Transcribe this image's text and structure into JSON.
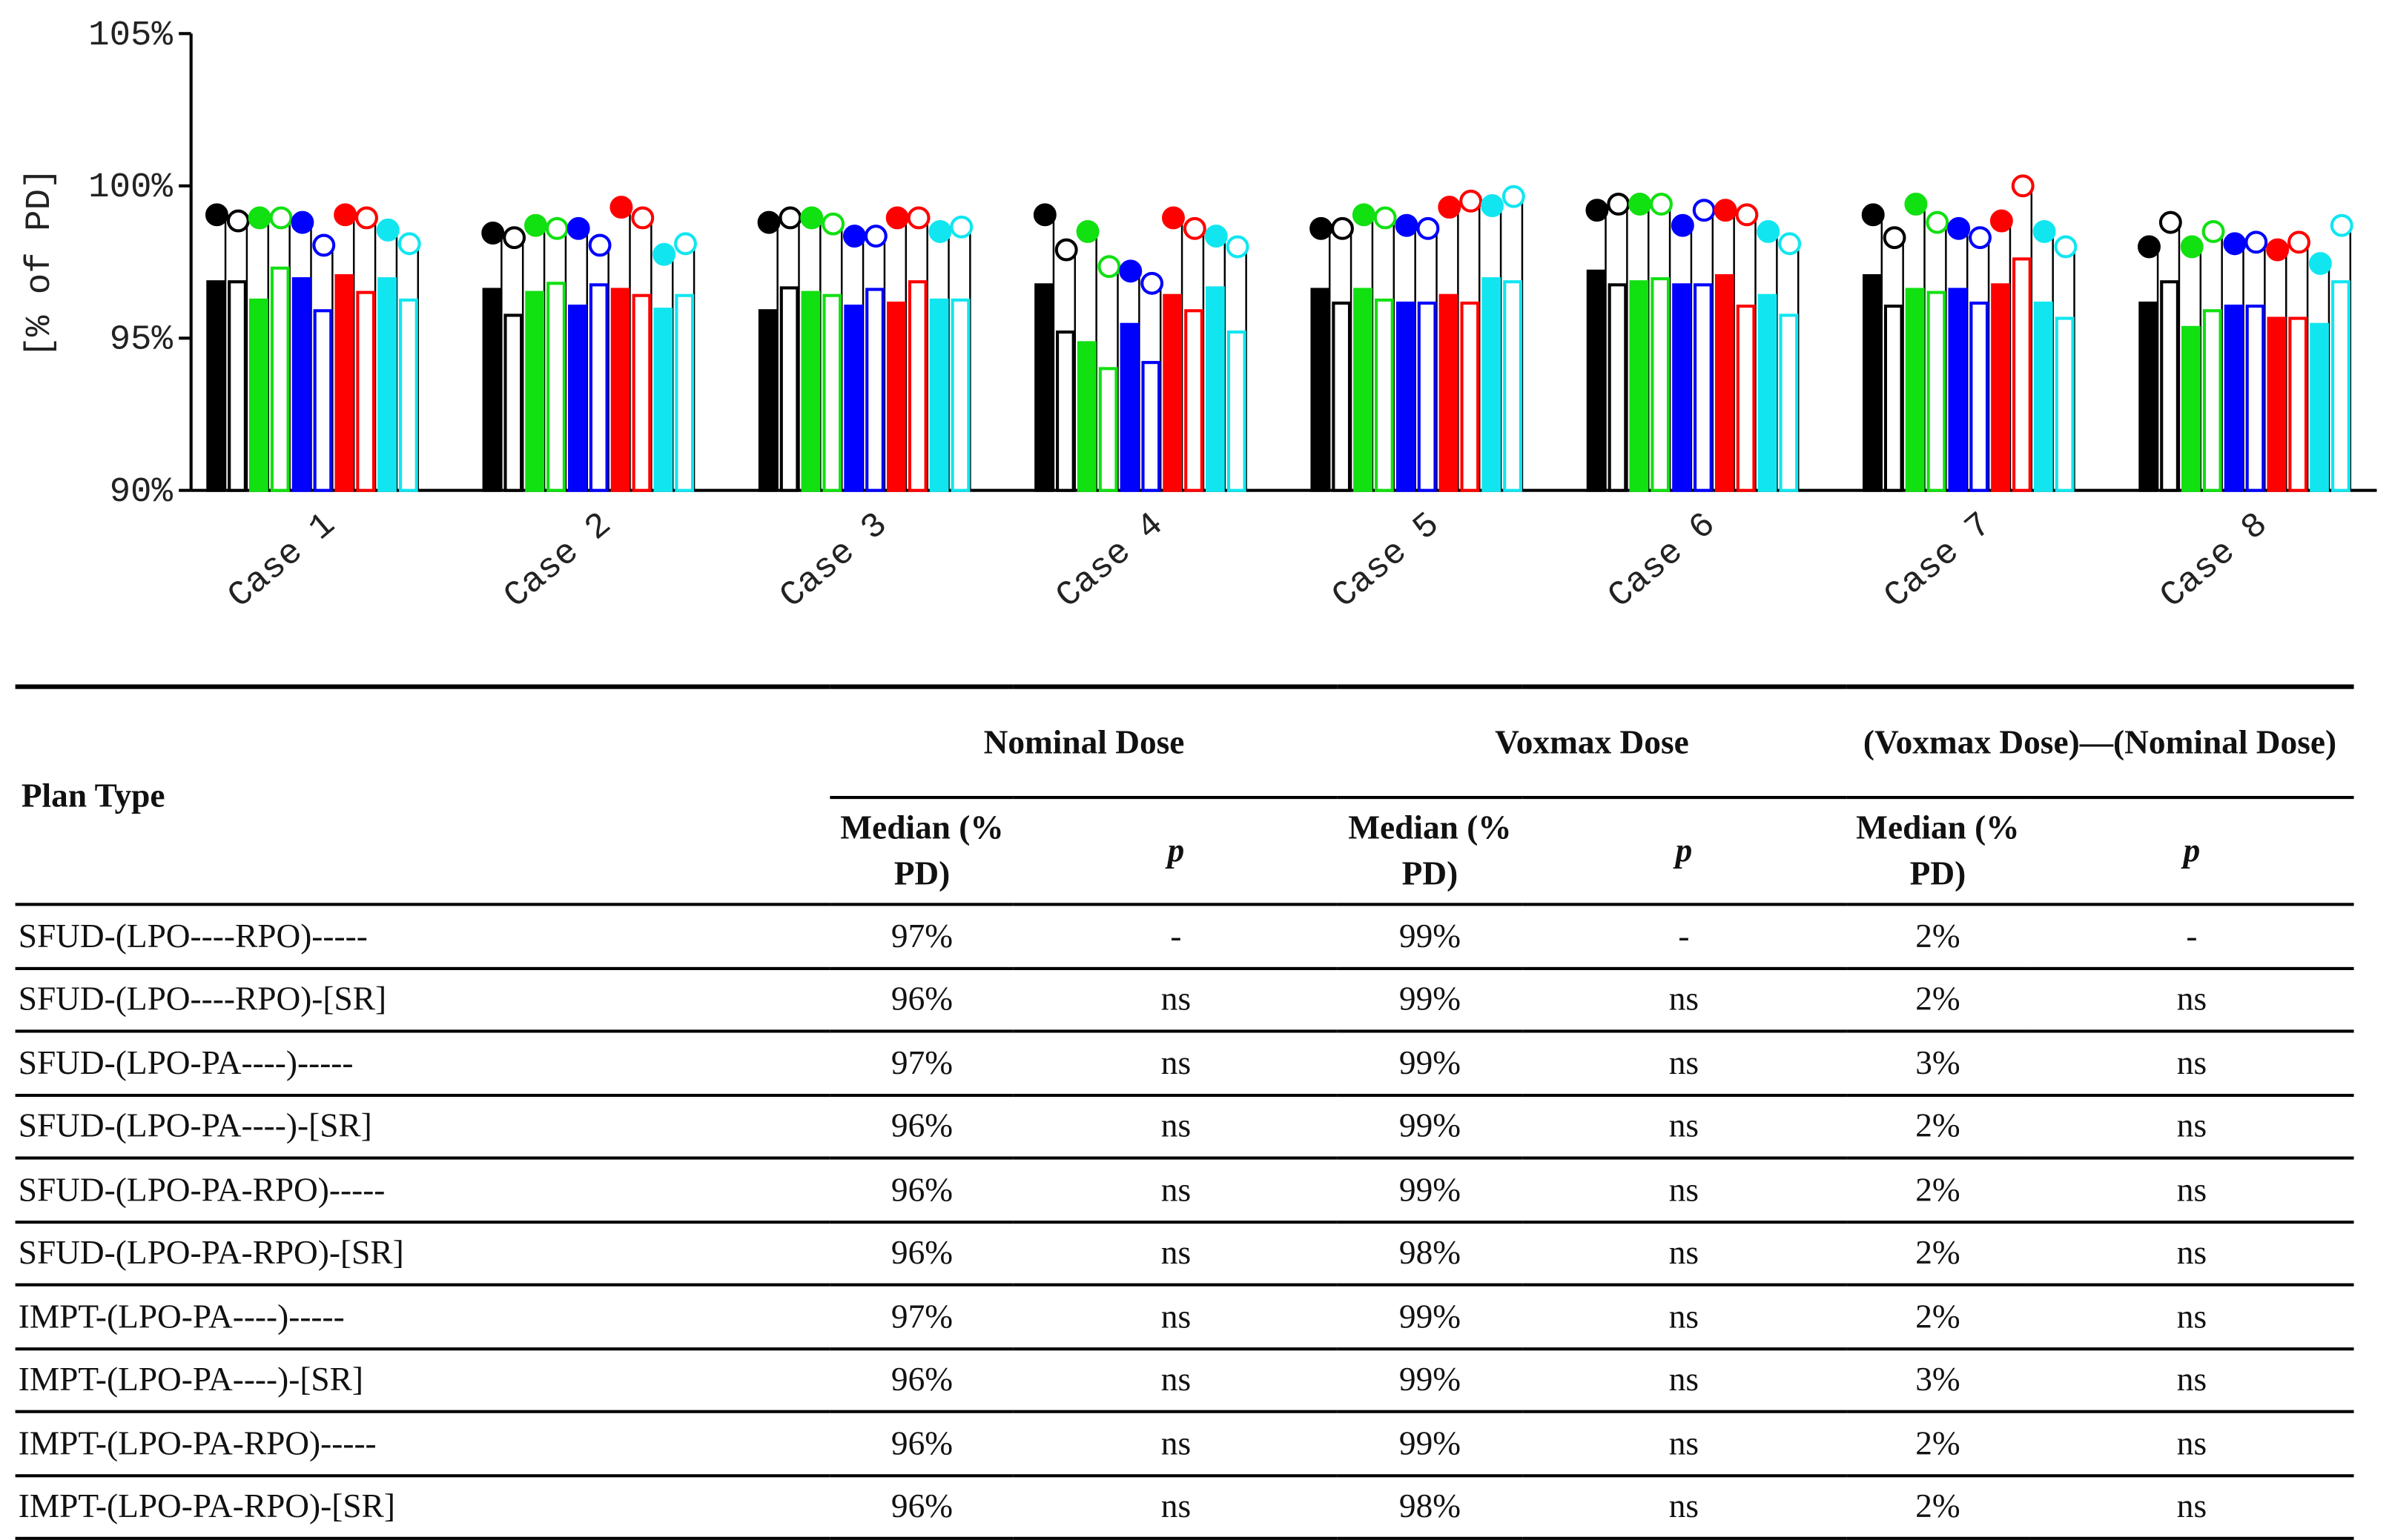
{
  "chart_data": {
    "type": "bar",
    "ylabel": "[% of PD]",
    "categories": [
      "Case 1",
      "Case 2",
      "Case 3",
      "Case 4",
      "Case 5",
      "Case 6",
      "Case 7",
      "Case 8"
    ],
    "ylim": [
      90,
      105
    ],
    "yticks": [
      {
        "value": 90,
        "label": "90%"
      },
      {
        "value": 95,
        "label": "95%"
      },
      {
        "value": 100,
        "label": "100%"
      },
      {
        "value": 105,
        "label": "105%"
      }
    ],
    "series": [
      {
        "color": "#000000",
        "filled": true,
        "values": [
          96.85,
          96.6,
          95.9,
          96.75,
          96.6,
          97.2,
          97.05,
          96.15
        ],
        "marker_values": [
          99.05,
          98.45,
          98.8,
          99.05,
          98.6,
          99.2,
          99.05,
          98.0
        ]
      },
      {
        "color": "#000000",
        "filled": false,
        "values": [
          96.85,
          95.75,
          96.65,
          95.2,
          96.15,
          96.75,
          96.05,
          96.85
        ],
        "marker_values": [
          98.85,
          98.3,
          98.95,
          97.9,
          98.6,
          99.4,
          98.3,
          98.8
        ]
      },
      {
        "color": "#11e011",
        "filled": true,
        "values": [
          96.25,
          96.5,
          96.5,
          94.85,
          96.6,
          96.85,
          96.6,
          95.35
        ],
        "marker_values": [
          98.95,
          98.7,
          98.95,
          98.5,
          99.05,
          99.4,
          99.4,
          98.0
        ]
      },
      {
        "color": "#11e011",
        "filled": false,
        "values": [
          97.3,
          96.8,
          96.4,
          94.0,
          96.25,
          96.95,
          96.5,
          95.9
        ],
        "marker_values": [
          98.95,
          98.6,
          98.75,
          97.35,
          98.95,
          99.4,
          98.8,
          98.5
        ]
      },
      {
        "color": "#0000ff",
        "filled": true,
        "values": [
          96.95,
          96.05,
          96.05,
          95.45,
          96.15,
          96.75,
          96.6,
          96.05
        ],
        "marker_values": [
          98.8,
          98.6,
          98.35,
          97.2,
          98.7,
          98.7,
          98.6,
          98.1
        ]
      },
      {
        "color": "#0000ff",
        "filled": false,
        "values": [
          95.9,
          96.75,
          96.6,
          94.2,
          96.15,
          96.75,
          96.15,
          96.05
        ],
        "marker_values": [
          98.05,
          98.05,
          98.35,
          96.8,
          98.6,
          99.2,
          98.3,
          98.15
        ]
      },
      {
        "color": "#ff0000",
        "filled": true,
        "values": [
          97.05,
          96.6,
          96.15,
          96.4,
          96.4,
          97.05,
          96.75,
          95.65
        ],
        "marker_values": [
          99.05,
          99.3,
          98.95,
          98.95,
          99.3,
          99.2,
          98.85,
          97.9
        ]
      },
      {
        "color": "#ff0000",
        "filled": false,
        "values": [
          96.5,
          96.4,
          96.85,
          95.9,
          96.15,
          96.05,
          97.6,
          95.65
        ],
        "marker_values": [
          98.95,
          98.95,
          98.95,
          98.6,
          99.5,
          99.05,
          100.0,
          98.15
        ]
      },
      {
        "color": "#11e6f0",
        "filled": true,
        "values": [
          96.95,
          95.95,
          96.25,
          96.65,
          96.95,
          96.4,
          96.15,
          95.45
        ],
        "marker_values": [
          98.55,
          97.75,
          98.5,
          98.35,
          99.35,
          98.5,
          98.5,
          97.45
        ]
      },
      {
        "color": "#11e6f0",
        "filled": false,
        "values": [
          96.25,
          96.4,
          96.25,
          95.2,
          96.85,
          95.75,
          95.65,
          96.85
        ],
        "marker_values": [
          98.1,
          98.1,
          98.65,
          98.0,
          99.65,
          98.1,
          98.0,
          98.7
        ]
      }
    ]
  },
  "table": {
    "header": [
      "Plan Type",
      "Nominal Dose",
      "Voxmax Dose",
      "(Voxmax Dose)—(Nominal Dose)"
    ],
    "subheader": [
      "Median (% PD)",
      "p",
      "Median (% PD)",
      "p",
      "Median (% PD)",
      "p"
    ],
    "rows": [
      [
        "SFUD-(LPO----RPO)-----",
        "97%",
        "-",
        "99%",
        "-",
        "2%",
        "-"
      ],
      [
        "SFUD-(LPO----RPO)-[SR]",
        "96%",
        "ns",
        "99%",
        "ns",
        "2%",
        "ns"
      ],
      [
        "SFUD-(LPO-PA----)-----",
        "97%",
        "ns",
        "99%",
        "ns",
        "3%",
        "ns"
      ],
      [
        "SFUD-(LPO-PA----)-[SR]",
        "96%",
        "ns",
        "99%",
        "ns",
        "2%",
        "ns"
      ],
      [
        "SFUD-(LPO-PA-RPO)-----",
        "96%",
        "ns",
        "99%",
        "ns",
        "2%",
        "ns"
      ],
      [
        "SFUD-(LPO-PA-RPO)-[SR]",
        "96%",
        "ns",
        "98%",
        "ns",
        "2%",
        "ns"
      ],
      [
        "IMPT-(LPO-PA----)-----",
        "97%",
        "ns",
        "99%",
        "ns",
        "2%",
        "ns"
      ],
      [
        "IMPT-(LPO-PA----)-[SR]",
        "96%",
        "ns",
        "99%",
        "ns",
        "3%",
        "ns"
      ],
      [
        "IMPT-(LPO-PA-RPO)-----",
        "96%",
        "ns",
        "99%",
        "ns",
        "2%",
        "ns"
      ],
      [
        "IMPT-(LPO-PA-RPO)-[SR]",
        "96%",
        "ns",
        "98%",
        "ns",
        "2%",
        "ns"
      ]
    ]
  }
}
